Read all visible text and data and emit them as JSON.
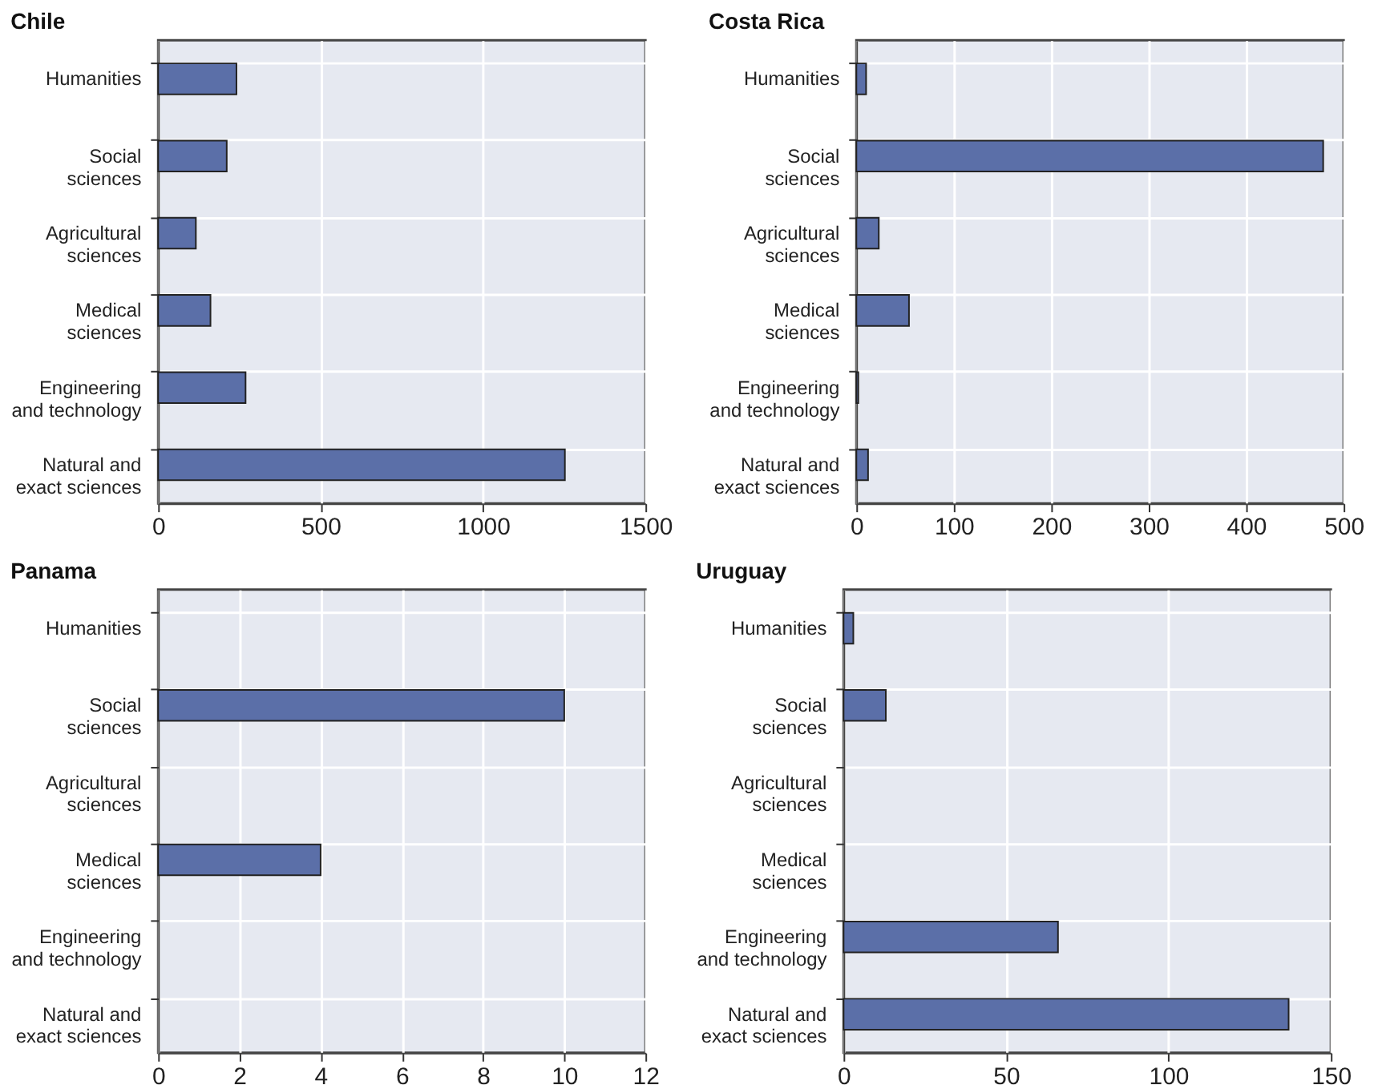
{
  "chart_data": [
    {
      "type": "bar",
      "orientation": "horizontal",
      "title": "Chile",
      "categories": [
        "Humanities",
        "Social\nsciences",
        "Agricultural\nsciences",
        "Medical\nsciences",
        "Engineering\nand technology",
        "Natural and\nexact sciences"
      ],
      "values": [
        241,
        211,
        116,
        161,
        269,
        1252
      ],
      "color": "#5b6fa8",
      "xlim": [
        0,
        1500
      ],
      "xticks": [
        0,
        500,
        1000,
        1500
      ],
      "grid": true
    },
    {
      "type": "bar",
      "orientation": "horizontal",
      "title": "Costa Rica",
      "categories": [
        "Humanities",
        "Social\nsciences",
        "Agricultural\nsciences",
        "Medical\nsciences",
        "Engineering\nand technology",
        "Natural and\nexact sciences"
      ],
      "values": [
        10,
        479,
        23,
        54,
        2,
        12
      ],
      "color": "#5b6fa8",
      "xlim": [
        0,
        500
      ],
      "xticks": [
        0,
        100,
        200,
        300,
        400,
        500
      ],
      "grid": true
    },
    {
      "type": "bar",
      "orientation": "horizontal",
      "title": "Panama",
      "categories": [
        "Humanities",
        "Social\nsciences",
        "Agricultural\nsciences",
        "Medical\nsciences",
        "Engineering\nand technology",
        "Natural and\nexact sciences"
      ],
      "values": [
        null,
        10,
        null,
        4,
        null,
        null
      ],
      "color": "#5b6fa8",
      "xlim": [
        0,
        12
      ],
      "xticks": [
        0,
        2,
        4,
        6,
        8,
        10,
        12
      ],
      "grid": true
    },
    {
      "type": "bar",
      "orientation": "horizontal",
      "title": "Uruguay",
      "categories": [
        "Humanities",
        "Social\nsciences",
        "Agricultural\nsciences",
        "Medical\nsciences",
        "Engineering\nand technology",
        "Natural and\nexact sciences"
      ],
      "values": [
        3,
        13,
        null,
        null,
        66,
        137
      ],
      "color": "#5b6fa8",
      "xlim": [
        0,
        150
      ],
      "xticks": [
        0,
        50,
        100,
        150
      ],
      "grid": true
    }
  ]
}
